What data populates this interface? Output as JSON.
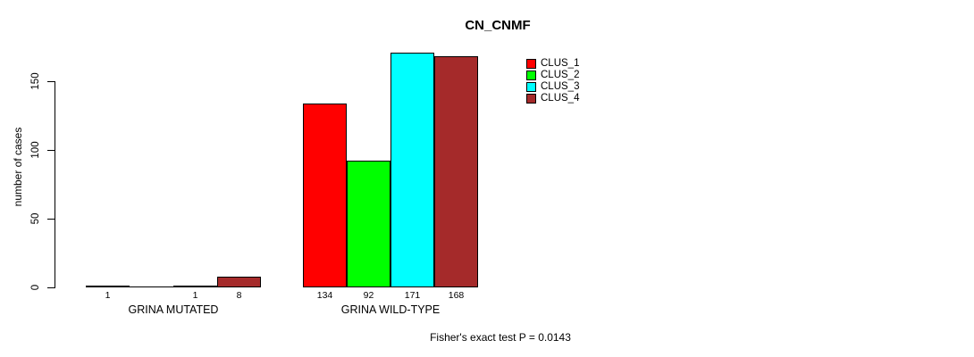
{
  "chart_data": {
    "type": "bar",
    "title": "CN_CNMF",
    "xlabel": "",
    "ylabel": "number of cases",
    "ylim": [
      0,
      150
    ],
    "yticks": [
      0,
      50,
      100,
      150
    ],
    "grid": false,
    "legend_position": "top-right",
    "categories": [
      "GRINA MUTATED",
      "GRINA WILD-TYPE"
    ],
    "groups": [
      {
        "label": "GRINA MUTATED",
        "values": [
          1,
          0,
          1,
          8
        ],
        "value_labels": [
          "1",
          "",
          "1",
          "8"
        ]
      },
      {
        "label": "GRINA WILD-TYPE",
        "values": [
          134,
          92,
          171,
          168
        ],
        "value_labels": [
          "134",
          "92",
          "171",
          "168"
        ]
      }
    ],
    "series": [
      {
        "name": "CLUS_1",
        "color": "#FF0000",
        "values": [
          1,
          134
        ]
      },
      {
        "name": "CLUS_2",
        "color": "#00FF00",
        "values": [
          0,
          92
        ]
      },
      {
        "name": "CLUS_3",
        "color": "#00FFFF",
        "values": [
          1,
          171
        ]
      },
      {
        "name": "CLUS_4",
        "color": "#A52A2A",
        "values": [
          8,
          168
        ]
      }
    ],
    "annotation": "Fisher's exact test P = 0.0143"
  }
}
